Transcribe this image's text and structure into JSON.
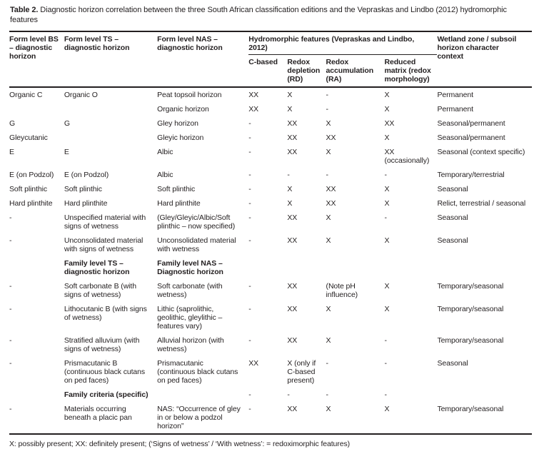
{
  "page": {
    "title_bold": "Table 2.",
    "title_rest": " Diagnostic horizon correlation between the three South African classification editions and the Vepraskas and Lindbo (2012) hydromorphic features",
    "footnote": "X: possibly present; XX: definitely present; (‘Signs of wetness’ / ‘With wetness’: = redoximorphic features)"
  },
  "table": {
    "header": {
      "col_bs": "Form level BS – diagnostic horizon",
      "col_ts": "Form level TS – diagnostic horizon",
      "col_nas": "Form level NAS – diagnostic horizon",
      "group": "Hydromorphic features (Vepraskas and Lindbo, 2012)",
      "sub": [
        "C-based",
        "Redox depletion (RD)",
        "Redox accumulation (RA)",
        "Reduced matrix (redox morphology)"
      ],
      "col_wetland": "Wetland zone / subsoil horizon character context"
    },
    "rows": [
      {
        "cells": [
          "Organic C",
          "Organic O",
          "Peat topsoil horizon",
          "XX",
          "X",
          "-",
          "X",
          "Permanent"
        ],
        "bold": []
      },
      {
        "cells": [
          "",
          "",
          "Organic horizon",
          "XX",
          "X",
          "-",
          "X",
          "Permanent"
        ],
        "bold": []
      },
      {
        "cells": [
          "G",
          "G",
          "Gley horizon",
          "-",
          "XX",
          "X",
          "XX",
          "Seasonal/permanent"
        ],
        "bold": []
      },
      {
        "cells": [
          "Gleycutanic",
          "",
          "Gleyic horizon",
          "-",
          "XX",
          "XX",
          "X",
          "Seasonal/permanent"
        ],
        "bold": []
      },
      {
        "cells": [
          "E",
          "E",
          "Albic",
          "-",
          "XX",
          "X",
          "XX (occasionally)",
          "Seasonal (context specific)"
        ],
        "bold": []
      },
      {
        "cells": [
          "E (on Podzol)",
          "E (on Podzol)",
          "Albic",
          "-",
          "-",
          "-",
          "-",
          "Temporary/terrestrial"
        ],
        "bold": []
      },
      {
        "cells": [
          "Soft plinthic",
          "Soft plinthic",
          "Soft plinthic",
          "-",
          "X",
          "XX",
          "X",
          "Seasonal"
        ],
        "bold": []
      },
      {
        "cells": [
          "Hard plinthite",
          "Hard plinthite",
          "Hard plinthite",
          "-",
          "X",
          "XX",
          "X",
          "Relict, terrestrial / seasonal"
        ],
        "bold": []
      },
      {
        "cells": [
          "-",
          "Unspecified material with signs of wetness",
          "(Gley/Gleyic/Albic/Soft plinthic – now specified)",
          "-",
          "XX",
          "X",
          "-",
          "Seasonal"
        ],
        "bold": []
      },
      {
        "cells": [
          "-",
          "Unconsolidated material with signs of wetness",
          "Unconsolidated material with wetness",
          "-",
          "XX",
          "X",
          "X",
          "Seasonal"
        ],
        "bold": []
      },
      {
        "cells": [
          "",
          "Family level TS – diagnostic horizon",
          "Family level NAS – Diagnostic horizon",
          "",
          "",
          "",
          "",
          ""
        ],
        "bold": [
          1,
          2
        ]
      },
      {
        "cells": [
          "-",
          "Soft carbonate B (with signs of wetness)",
          "Soft carbonate (with wetness)",
          "-",
          "XX",
          "(Note pH influence)",
          "X",
          "Temporary/seasonal"
        ],
        "bold": []
      },
      {
        "cells": [
          "-",
          "Lithocutanic B (with signs of wetness)",
          "Lithic (saprolithic, geolithic, gleylithic – features vary)",
          "-",
          "XX",
          "X",
          "X",
          "Temporary/seasonal"
        ],
        "bold": []
      },
      {
        "cells": [
          "-",
          "Stratified alluvium (with signs of wetness)",
          "Alluvial horizon (with wetness)",
          "-",
          "XX",
          "X",
          "-",
          "Temporary/seasonal"
        ],
        "bold": []
      },
      {
        "cells": [
          "-",
          "Prismacutanic B (continuous black cutans on ped faces)",
          "Prismacutanic (continuous black cutans on ped faces)",
          "XX",
          "X (only if C-based present)",
          "-",
          "-",
          "Seasonal"
        ],
        "bold": []
      },
      {
        "cells": [
          "",
          "Family criteria (specific)",
          "",
          "-",
          "-",
          "-",
          "-",
          ""
        ],
        "bold": [
          1
        ]
      },
      {
        "cells": [
          "-",
          "Materials occurring beneath a placic pan",
          "NAS: “Occurrence of gley in or below a podzol horizon”",
          "-",
          "XX",
          "X",
          "X",
          "Temporary/seasonal"
        ],
        "bold": []
      }
    ]
  }
}
